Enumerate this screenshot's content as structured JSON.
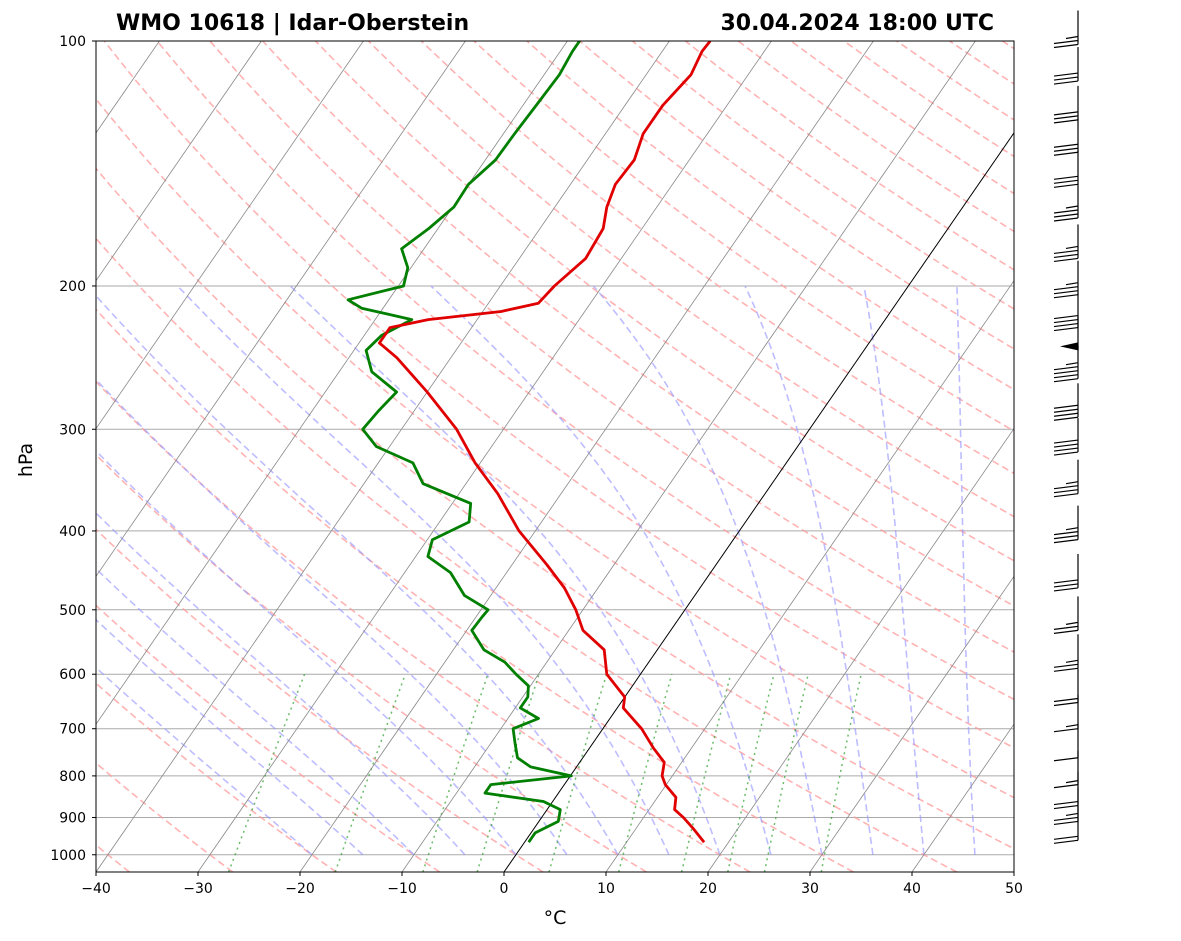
{
  "chart_data": {
    "type": "line",
    "title_left": "WMO 10618 | Idar-Oberstein",
    "title_right": "30.04.2024 18:00 UTC",
    "xlabel": "°C",
    "ylabel": "hPa",
    "xlim": [
      -40,
      50
    ],
    "ylim": [
      1050,
      100
    ],
    "y_scale": "log",
    "skew": "skew-T log-p",
    "x_ticks": [
      "−40",
      "−30",
      "−20",
      "−10",
      "0",
      "10",
      "20",
      "30",
      "40",
      "50"
    ],
    "y_ticks": [
      "100",
      "200",
      "300",
      "400",
      "500",
      "600",
      "700",
      "800",
      "900",
      "1000"
    ],
    "grid": true,
    "colors": {
      "temperature": "#e00000",
      "dewpoint": "#007f00",
      "dry_adiabats": "#ff9999",
      "moist_adiabats": "#9999ff",
      "mixing_ratio": "#2ca02c",
      "isotherms": "#888888",
      "zero_isotherm": "#000000",
      "isobars": "#aaaaaa"
    },
    "series": [
      {
        "key": "temperature",
        "points": [
          {
            "p": 965,
            "t": 17.6
          },
          {
            "p": 930,
            "t": 15.7
          },
          {
            "p": 900,
            "t": 13.9
          },
          {
            "p": 880,
            "t": 12.5
          },
          {
            "p": 850,
            "t": 11.8
          },
          {
            "p": 820,
            "t": 9.9
          },
          {
            "p": 800,
            "t": 9.0
          },
          {
            "p": 770,
            "t": 8.3
          },
          {
            "p": 740,
            "t": 6.3
          },
          {
            "p": 700,
            "t": 3.8
          },
          {
            "p": 660,
            "t": 0.6
          },
          {
            "p": 640,
            "t": 0.0
          },
          {
            "p": 600,
            "t": -3.3
          },
          {
            "p": 560,
            "t": -5.2
          },
          {
            "p": 530,
            "t": -8.6
          },
          {
            "p": 500,
            "t": -10.7
          },
          {
            "p": 470,
            "t": -13.3
          },
          {
            "p": 440,
            "t": -16.6
          },
          {
            "p": 400,
            "t": -21.6
          },
          {
            "p": 360,
            "t": -26.2
          },
          {
            "p": 330,
            "t": -30.5
          },
          {
            "p": 300,
            "t": -34.6
          },
          {
            "p": 270,
            "t": -40.0
          },
          {
            "p": 245,
            "t": -45.3
          },
          {
            "p": 235,
            "t": -48.0
          },
          {
            "p": 225,
            "t": -48.0
          },
          {
            "p": 220,
            "t": -44.8
          },
          {
            "p": 215,
            "t": -38.2
          },
          {
            "p": 210,
            "t": -35.1
          },
          {
            "p": 200,
            "t": -34.7
          },
          {
            "p": 185,
            "t": -33.5
          },
          {
            "p": 170,
            "t": -33.8
          },
          {
            "p": 160,
            "t": -34.9
          },
          {
            "p": 150,
            "t": -35.6
          },
          {
            "p": 140,
            "t": -35.4
          },
          {
            "p": 130,
            "t": -36.3
          },
          {
            "p": 120,
            "t": -36.3
          },
          {
            "p": 110,
            "t": -35.6
          },
          {
            "p": 103,
            "t": -36.1
          },
          {
            "p": 100,
            "t": -36.0
          }
        ]
      },
      {
        "key": "dewpoint",
        "points": [
          {
            "p": 965,
            "t": 0.4
          },
          {
            "p": 940,
            "t": 0.4
          },
          {
            "p": 910,
            "t": 1.9
          },
          {
            "p": 880,
            "t": 1.3
          },
          {
            "p": 860,
            "t": -0.9
          },
          {
            "p": 840,
            "t": -7.2
          },
          {
            "p": 820,
            "t": -7.2
          },
          {
            "p": 800,
            "t": 0.1
          },
          {
            "p": 780,
            "t": -4.5
          },
          {
            "p": 760,
            "t": -6.4
          },
          {
            "p": 730,
            "t": -7.6
          },
          {
            "p": 700,
            "t": -8.8
          },
          {
            "p": 680,
            "t": -7.0
          },
          {
            "p": 660,
            "t": -9.5
          },
          {
            "p": 640,
            "t": -9.5
          },
          {
            "p": 620,
            "t": -10.2
          },
          {
            "p": 600,
            "t": -12.2
          },
          {
            "p": 580,
            "t": -14.1
          },
          {
            "p": 560,
            "t": -17.0
          },
          {
            "p": 530,
            "t": -19.5
          },
          {
            "p": 510,
            "t": -19.4
          },
          {
            "p": 500,
            "t": -19.3
          },
          {
            "p": 480,
            "t": -22.6
          },
          {
            "p": 450,
            "t": -25.5
          },
          {
            "p": 430,
            "t": -28.8
          },
          {
            "p": 410,
            "t": -29.5
          },
          {
            "p": 390,
            "t": -27.1
          },
          {
            "p": 370,
            "t": -28.2
          },
          {
            "p": 350,
            "t": -34.2
          },
          {
            "p": 330,
            "t": -36.6
          },
          {
            "p": 315,
            "t": -41.3
          },
          {
            "p": 300,
            "t": -43.8
          },
          {
            "p": 285,
            "t": -43.5
          },
          {
            "p": 270,
            "t": -43.0
          },
          {
            "p": 255,
            "t": -46.8
          },
          {
            "p": 240,
            "t": -48.8
          },
          {
            "p": 230,
            "t": -48.3
          },
          {
            "p": 220,
            "t": -46.4
          },
          {
            "p": 213,
            "t": -52.1
          },
          {
            "p": 208,
            "t": -54.0
          },
          {
            "p": 200,
            "t": -49.5
          },
          {
            "p": 190,
            "t": -50.3
          },
          {
            "p": 180,
            "t": -52.2
          },
          {
            "p": 170,
            "t": -50.9
          },
          {
            "p": 160,
            "t": -49.9
          },
          {
            "p": 150,
            "t": -50.0
          },
          {
            "p": 140,
            "t": -49.0
          },
          {
            "p": 130,
            "t": -48.9
          },
          {
            "p": 120,
            "t": -48.7
          },
          {
            "p": 110,
            "t": -48.5
          },
          {
            "p": 103,
            "t": -48.8
          },
          {
            "p": 100,
            "t": -48.8
          }
        ]
      }
    ],
    "wind_barbs": [
      {
        "p": 960,
        "speed_kt": 20
      },
      {
        "p": 910,
        "speed_kt": 25
      },
      {
        "p": 870,
        "speed_kt": 20
      },
      {
        "p": 820,
        "speed_kt": 15
      },
      {
        "p": 760,
        "speed_kt": 10
      },
      {
        "p": 700,
        "speed_kt": 15
      },
      {
        "p": 650,
        "speed_kt": 20
      },
      {
        "p": 590,
        "speed_kt": 25
      },
      {
        "p": 530,
        "speed_kt": 25
      },
      {
        "p": 470,
        "speed_kt": 30
      },
      {
        "p": 410,
        "speed_kt": 35
      },
      {
        "p": 360,
        "speed_kt": 35
      },
      {
        "p": 320,
        "speed_kt": 40
      },
      {
        "p": 290,
        "speed_kt": 40
      },
      {
        "p": 260,
        "speed_kt": 45
      },
      {
        "p": 240,
        "speed_kt": 50
      },
      {
        "p": 225,
        "speed_kt": 40
      },
      {
        "p": 205,
        "speed_kt": 35
      },
      {
        "p": 185,
        "speed_kt": 35
      },
      {
        "p": 165,
        "speed_kt": 35
      },
      {
        "p": 150,
        "speed_kt": 30
      },
      {
        "p": 137,
        "speed_kt": 30
      },
      {
        "p": 125,
        "speed_kt": 30
      },
      {
        "p": 112,
        "speed_kt": 30
      },
      {
        "p": 101,
        "speed_kt": 25
      }
    ]
  }
}
